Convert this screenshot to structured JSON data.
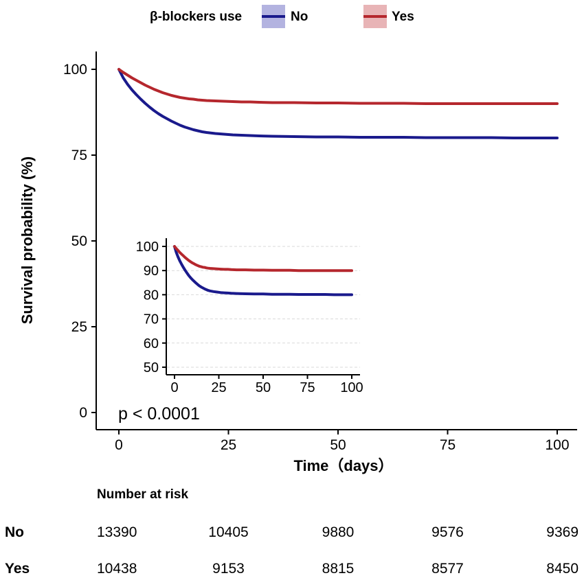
{
  "chart_data": {
    "type": "line",
    "title": "",
    "legend": {
      "title": "β-blockers use",
      "position": "top"
    },
    "xlabel": "Time（days）",
    "ylabel": "Survival probability (%)",
    "xlim": [
      0,
      100
    ],
    "ylim": [
      0,
      100
    ],
    "x_ticks": [
      "0",
      "25",
      "50",
      "75",
      "100"
    ],
    "y_ticks": [
      "0",
      "25",
      "50",
      "75",
      "100"
    ],
    "x_tick_values": [
      0,
      25,
      50,
      75,
      100
    ],
    "y_tick_values": [
      0,
      25,
      50,
      75,
      100
    ],
    "annotation": "p < 0.0001",
    "series": [
      {
        "name": "No",
        "color": "#1a1a8c",
        "fill": "#b3b3e0",
        "x": [
          0,
          1,
          2,
          3,
          4,
          5,
          6,
          7,
          8,
          9,
          10,
          11,
          12,
          13,
          14,
          15,
          16,
          17,
          18,
          19,
          20,
          22,
          24,
          26,
          28,
          30,
          32,
          35,
          40,
          45,
          50,
          55,
          60,
          65,
          70,
          75,
          80,
          85,
          90,
          95,
          100
        ],
        "y": [
          100,
          97.5,
          95.6,
          94.0,
          92.6,
          91.3,
          90.1,
          89.0,
          88.0,
          87.1,
          86.3,
          85.6,
          84.9,
          84.3,
          83.7,
          83.2,
          82.8,
          82.4,
          82.1,
          81.8,
          81.6,
          81.3,
          81.1,
          80.9,
          80.8,
          80.7,
          80.6,
          80.5,
          80.4,
          80.3,
          80.3,
          80.2,
          80.2,
          80.2,
          80.1,
          80.1,
          80.1,
          80.1,
          80.0,
          80.0,
          80.0
        ]
      },
      {
        "name": "Yes",
        "color": "#b5272d",
        "fill": "#e8b4b6",
        "x": [
          0,
          1,
          2,
          3,
          4,
          5,
          6,
          7,
          8,
          9,
          10,
          11,
          12,
          13,
          14,
          15,
          16,
          17,
          18,
          19,
          20,
          22,
          24,
          26,
          28,
          30,
          32,
          35,
          40,
          45,
          50,
          55,
          60,
          65,
          70,
          75,
          80,
          85,
          90,
          95,
          100
        ],
        "y": [
          100,
          99.1,
          98.3,
          97.5,
          96.8,
          96.1,
          95.4,
          94.8,
          94.2,
          93.7,
          93.2,
          92.8,
          92.4,
          92.1,
          91.8,
          91.6,
          91.4,
          91.3,
          91.1,
          91.0,
          90.9,
          90.8,
          90.7,
          90.6,
          90.5,
          90.5,
          90.4,
          90.3,
          90.3,
          90.2,
          90.2,
          90.1,
          90.1,
          90.1,
          90.0,
          90.0,
          90.0,
          90.0,
          90.0,
          90.0,
          90.0
        ]
      }
    ],
    "inset": {
      "xlim": [
        0,
        100
      ],
      "ylim": [
        48,
        100
      ],
      "x_ticks": [
        "0",
        "25",
        "50",
        "75",
        "100"
      ],
      "y_ticks": [
        "50",
        "60",
        "70",
        "80",
        "90",
        "100"
      ],
      "x_tick_values": [
        0,
        25,
        50,
        75,
        100
      ],
      "y_tick_values": [
        50,
        60,
        70,
        80,
        90,
        100
      ],
      "grid": true
    },
    "risk_table": {
      "title": "Number at risk",
      "time_points": [
        0,
        25,
        50,
        75,
        100
      ],
      "rows": [
        {
          "group": "No",
          "values": [
            "13390",
            "10405",
            "9880",
            "9576",
            "9369"
          ]
        },
        {
          "group": "Yes",
          "values": [
            "10438",
            "9153",
            "8815",
            "8577",
            "8450"
          ]
        }
      ]
    }
  }
}
